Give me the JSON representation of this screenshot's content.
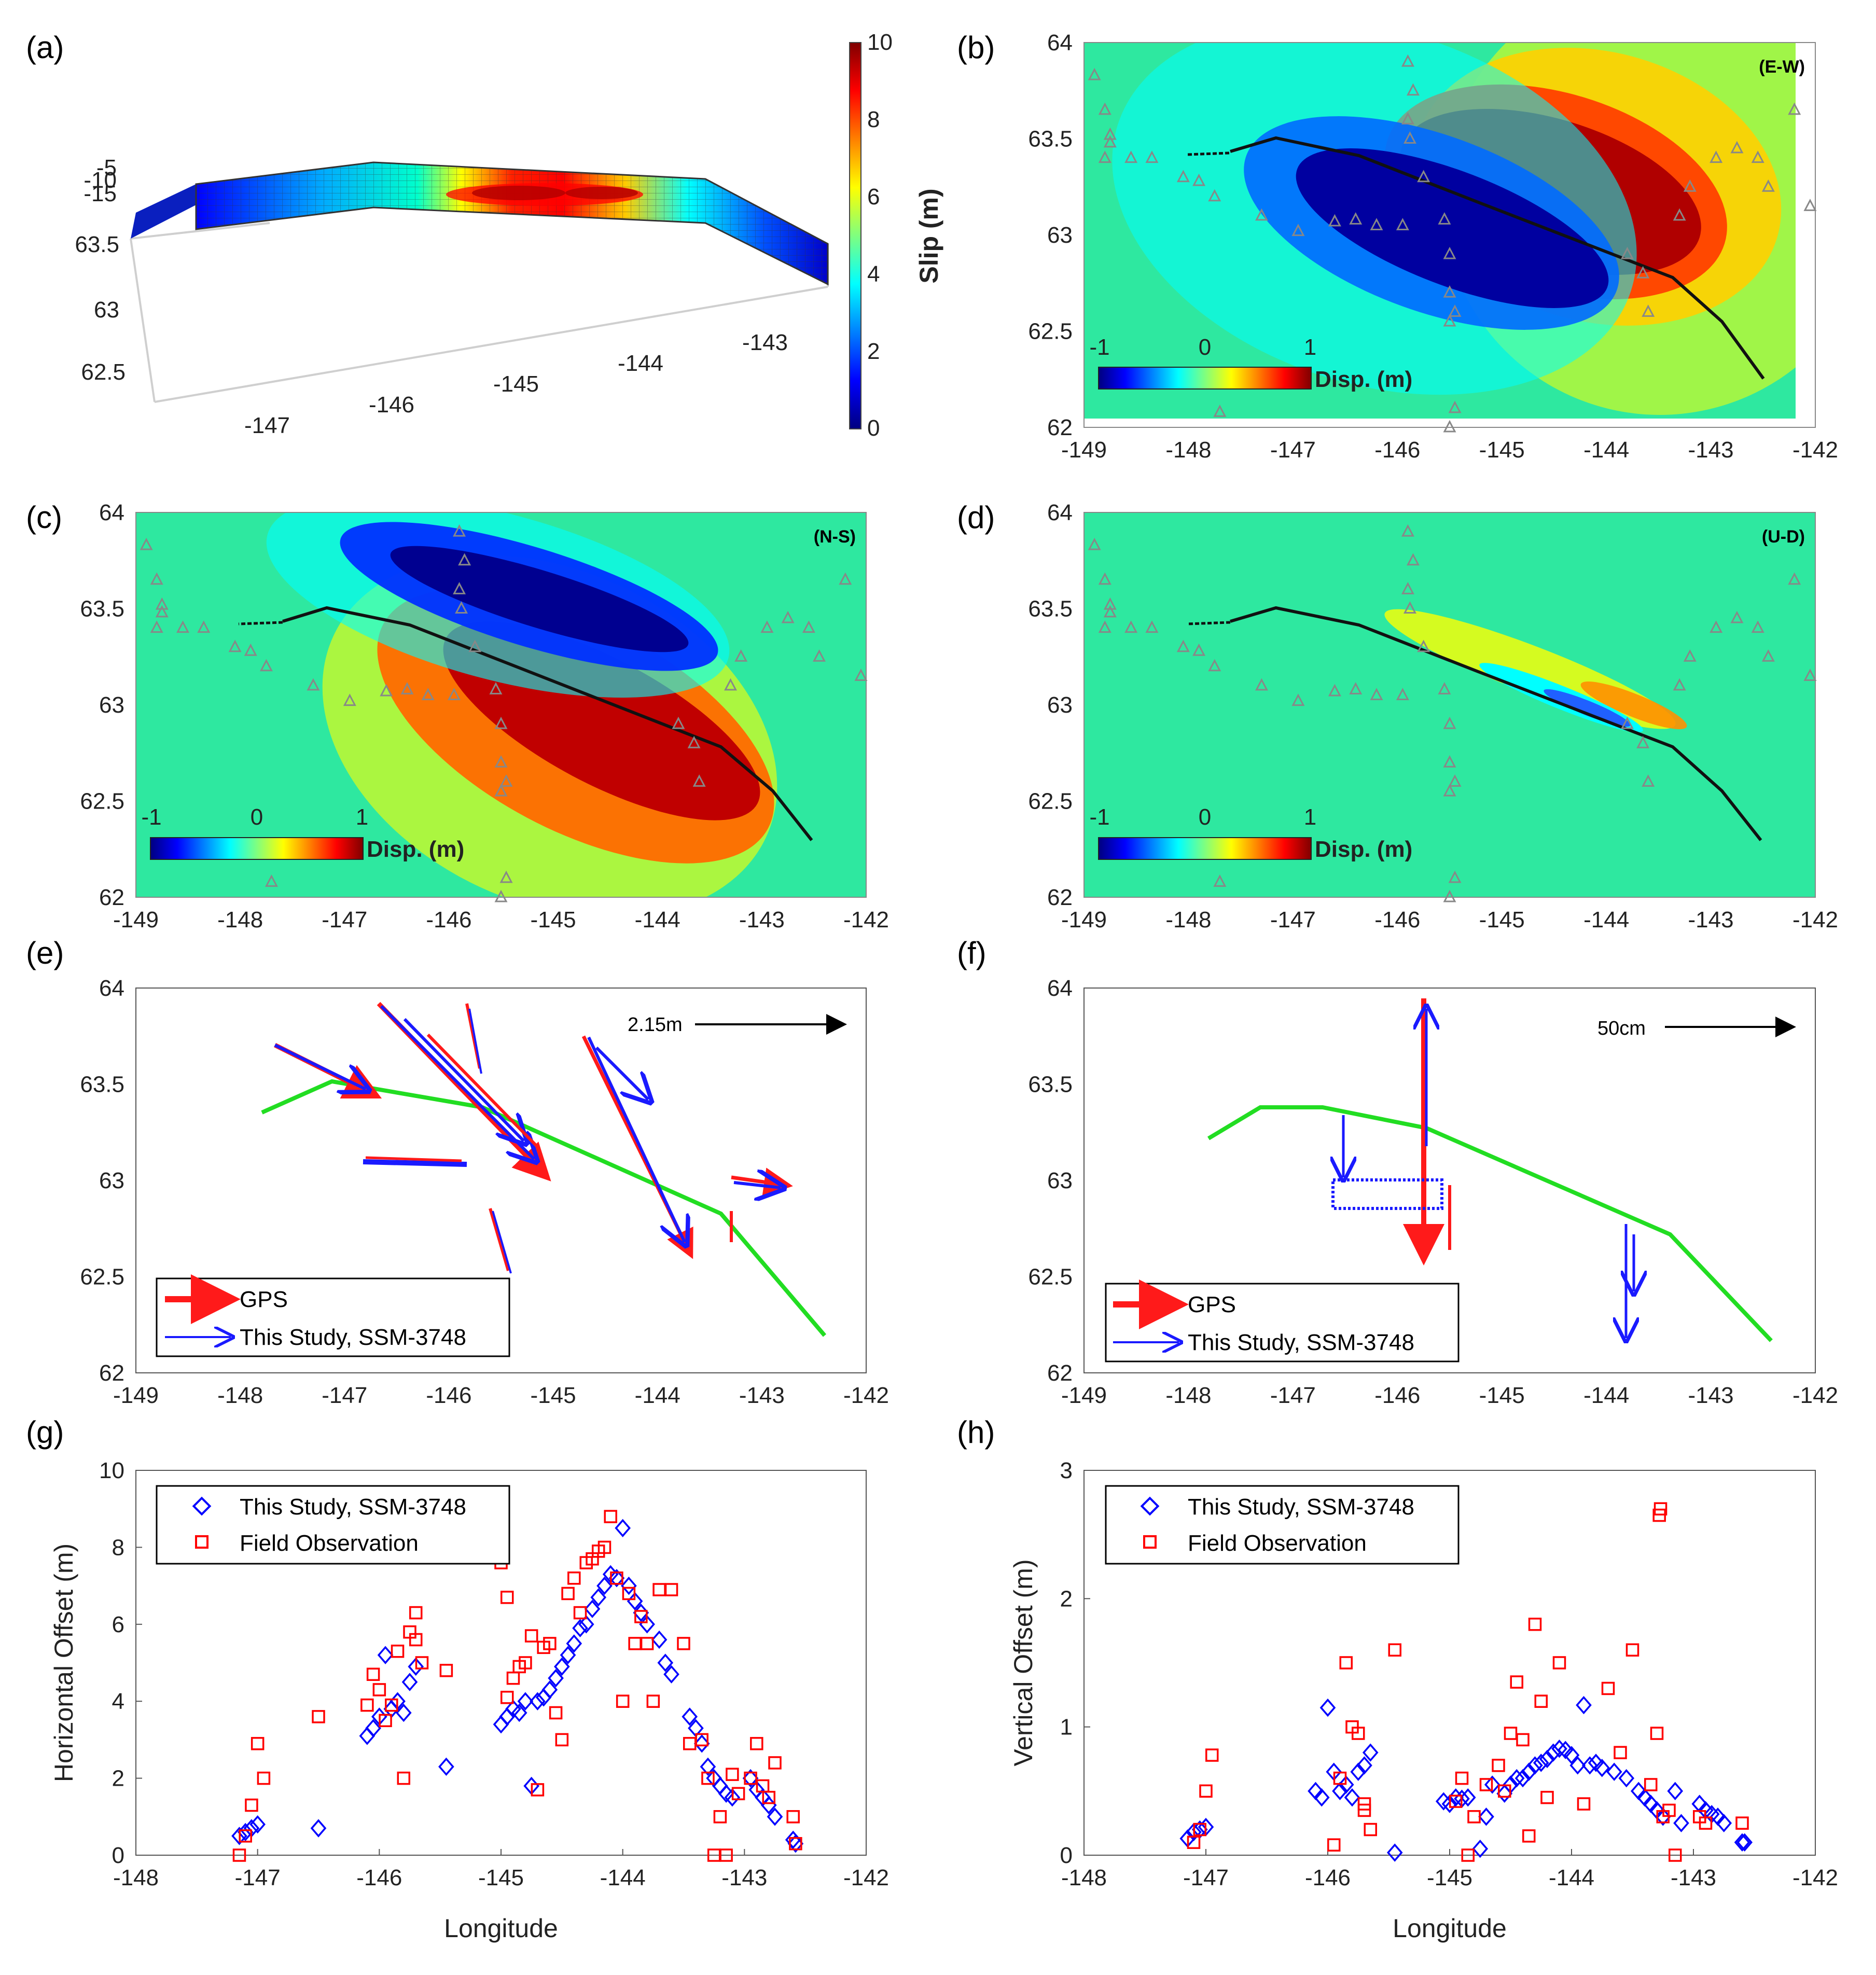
{
  "colors": {
    "jet": [
      "#00007f",
      "#0000ff",
      "#007fff",
      "#00ffff",
      "#7fff7f",
      "#ffff00",
      "#ff7f00",
      "#ff0000",
      "#7f0000"
    ],
    "field_bg": "#2ee8a0",
    "station": "#888888",
    "fault_trace": "#111111",
    "model_green": "#22dd22",
    "gps_red": "#ff1a1a",
    "model_blue": "#1a1aff",
    "marker_blue": "#0000ff",
    "marker_red": "#ff0000",
    "axis": "#555555"
  },
  "panel_a": {
    "label": "(a)",
    "x_ticks": [
      "-147",
      "-146",
      "-145",
      "-144",
      "-143"
    ],
    "y_ticks": [
      "63.5",
      "63",
      "62.5"
    ],
    "z_ticks": [
      "-5",
      "-10",
      "-15"
    ],
    "colorbar_ticks": [
      "10",
      "8",
      "6",
      "4",
      "2",
      "0"
    ],
    "colorbar_label": "Slip (m)"
  },
  "map_panels": [
    {
      "id": "b",
      "label": "(b)",
      "component": "(E-W)",
      "x_ticks": [
        "-149",
        "-148",
        "-147",
        "-146",
        "-145",
        "-144",
        "-143",
        "-142"
      ],
      "y_ticks": [
        "64",
        "63.5",
        "63",
        "62.5",
        "62"
      ],
      "cbar_ticks": [
        "-1",
        "0",
        "1"
      ],
      "cbar_label": "Disp. (m)"
    },
    {
      "id": "c",
      "label": "(c)",
      "component": "(N-S)",
      "x_ticks": [
        "-149",
        "-148",
        "-147",
        "-146",
        "-145",
        "-144",
        "-143",
        "-142"
      ],
      "y_ticks": [
        "64",
        "63.5",
        "63",
        "62.5",
        "62"
      ],
      "cbar_ticks": [
        "-1",
        "0",
        "1"
      ],
      "cbar_label": "Disp. (m)"
    },
    {
      "id": "d",
      "label": "(d)",
      "component": "(U-D)",
      "x_ticks": [
        "-149",
        "-148",
        "-147",
        "-146",
        "-145",
        "-144",
        "-143",
        "-142"
      ],
      "y_ticks": [
        "64",
        "63.5",
        "63",
        "62.5",
        "62"
      ],
      "cbar_ticks": [
        "-1",
        "0",
        "1"
      ],
      "cbar_label": "Disp. (m)"
    }
  ],
  "vector_panels": [
    {
      "id": "e",
      "label": "(e)",
      "scale_label": "2.15m",
      "x_ticks": [
        "-149",
        "-148",
        "-147",
        "-146",
        "-145",
        "-144",
        "-143",
        "-142"
      ],
      "y_ticks": [
        "64",
        "63.5",
        "63",
        "62.5",
        "62"
      ],
      "legend": [
        "GPS",
        "This Study, SSM-3748"
      ]
    },
    {
      "id": "f",
      "label": "(f)",
      "scale_label": "50cm",
      "x_ticks": [
        "-149",
        "-148",
        "-147",
        "-146",
        "-145",
        "-144",
        "-143",
        "-142"
      ],
      "y_ticks": [
        "64",
        "63.5",
        "63",
        "62.5",
        "62"
      ],
      "legend": [
        "GPS",
        "This Study, SSM-3748"
      ]
    }
  ],
  "chart_data": [
    {
      "panel": "(g)",
      "type": "scatter",
      "xlabel": "Longitude",
      "ylabel": "Horizontal Offset (m)",
      "xlim": [
        -148,
        -142
      ],
      "ylim": [
        0,
        10
      ],
      "x_ticks": [
        "-148",
        "-147",
        "-146",
        "-145",
        "-144",
        "-143",
        "-142"
      ],
      "y_ticks": [
        "0",
        "2",
        "4",
        "6",
        "8",
        "10"
      ],
      "series": [
        {
          "name": "This Study, SSM-3748",
          "marker": "diamond",
          "x": [
            -147.15,
            -147.1,
            -147.05,
            -147.0,
            -146.5,
            -146.1,
            -146.05,
            -146.0,
            -145.95,
            -145.9,
            -145.85,
            -145.8,
            -145.75,
            -145.7,
            -145.45,
            -145.0,
            -144.95,
            -144.9,
            -144.85,
            -144.8,
            -144.75,
            -144.7,
            -144.65,
            -144.6,
            -144.55,
            -144.5,
            -144.45,
            -144.4,
            -144.35,
            -144.3,
            -144.25,
            -144.2,
            -144.15,
            -144.1,
            -144.05,
            -144.0,
            -143.95,
            -143.9,
            -143.85,
            -143.8,
            -143.7,
            -143.65,
            -143.6,
            -143.45,
            -143.4,
            -143.35,
            -143.3,
            -143.25,
            -143.2,
            -143.15,
            -143.1,
            -142.95,
            -142.9,
            -142.85,
            -142.8,
            -142.75,
            -142.6,
            -142.58
          ],
          "values": [
            0.5,
            0.6,
            0.7,
            0.8,
            0.7,
            3.1,
            3.3,
            3.6,
            5.2,
            3.8,
            4.0,
            3.7,
            4.5,
            4.9,
            2.3,
            3.4,
            3.6,
            3.8,
            3.7,
            4.0,
            1.8,
            4.0,
            4.1,
            4.3,
            4.6,
            4.9,
            5.2,
            5.5,
            5.9,
            6.0,
            6.4,
            6.7,
            7.0,
            7.3,
            7.2,
            8.5,
            7.0,
            6.6,
            6.3,
            6.0,
            5.6,
            5.0,
            4.7,
            3.6,
            3.3,
            2.9,
            2.3,
            2.0,
            1.8,
            1.6,
            1.5,
            2.0,
            1.7,
            1.5,
            1.3,
            1.0,
            0.4,
            0.3
          ]
        },
        {
          "name": "Field Observation",
          "marker": "square",
          "x": [
            -147.15,
            -147.1,
            -147.05,
            -147.0,
            -146.95,
            -146.5,
            -146.1,
            -146.05,
            -146.0,
            -145.95,
            -145.9,
            -145.85,
            -145.8,
            -145.75,
            -145.7,
            -145.7,
            -145.65,
            -145.45,
            -145.0,
            -144.95,
            -144.95,
            -144.9,
            -144.85,
            -144.8,
            -144.75,
            -144.7,
            -144.65,
            -144.6,
            -144.55,
            -144.5,
            -144.45,
            -144.4,
            -144.35,
            -144.3,
            -144.25,
            -144.2,
            -144.15,
            -144.1,
            -144.05,
            -144.0,
            -143.95,
            -143.9,
            -143.85,
            -143.8,
            -143.75,
            -143.7,
            -143.6,
            -143.5,
            -143.45,
            -143.35,
            -143.3,
            -143.25,
            -143.2,
            -143.15,
            -143.1,
            -143.05,
            -142.95,
            -142.9,
            -142.85,
            -142.8,
            -142.75,
            -142.6,
            -142.58
          ],
          "values": [
            0.0,
            0.5,
            1.3,
            2.9,
            2.0,
            3.6,
            3.9,
            4.7,
            4.3,
            3.5,
            3.9,
            5.3,
            2.0,
            5.8,
            6.3,
            5.6,
            5.0,
            4.8,
            7.6,
            4.1,
            6.7,
            4.6,
            4.9,
            5.0,
            5.7,
            1.7,
            5.4,
            5.5,
            3.7,
            3.0,
            6.8,
            7.2,
            6.3,
            7.6,
            7.7,
            7.9,
            8.0,
            8.8,
            7.2,
            4.0,
            6.8,
            5.5,
            6.2,
            5.5,
            4.0,
            6.9,
            6.9,
            5.5,
            2.9,
            3.0,
            2.0,
            0.0,
            1.0,
            0.0,
            2.1,
            1.6,
            2.0,
            2.9,
            1.8,
            1.5,
            2.4,
            1.0,
            0.3
          ]
        }
      ]
    },
    {
      "panel": "(h)",
      "type": "scatter",
      "xlabel": "Longitude",
      "ylabel": "Vertical Offset (m)",
      "xlim": [
        -148,
        -142
      ],
      "ylim": [
        0,
        3
      ],
      "x_ticks": [
        "-148",
        "-147",
        "-146",
        "-145",
        "-144",
        "-143",
        "-142"
      ],
      "y_ticks": [
        "0",
        "1",
        "2",
        "3"
      ],
      "series": [
        {
          "name": "This Study, SSM-3748",
          "marker": "diamond",
          "x": [
            -147.15,
            -147.1,
            -147.05,
            -147.0,
            -146.1,
            -146.05,
            -146.0,
            -145.95,
            -145.9,
            -145.85,
            -145.8,
            -145.75,
            -145.7,
            -145.65,
            -145.45,
            -145.05,
            -145.0,
            -144.95,
            -144.9,
            -144.85,
            -144.75,
            -144.7,
            -144.65,
            -144.55,
            -144.5,
            -144.45,
            -144.4,
            -144.35,
            -144.3,
            -144.25,
            -144.2,
            -144.15,
            -144.1,
            -144.05,
            -144.0,
            -143.95,
            -143.9,
            -143.85,
            -143.8,
            -143.75,
            -143.65,
            -143.55,
            -143.45,
            -143.4,
            -143.35,
            -143.3,
            -143.25,
            -143.15,
            -143.1,
            -142.95,
            -142.9,
            -142.85,
            -142.8,
            -142.75,
            -142.6,
            -142.58
          ],
          "values": [
            0.13,
            0.18,
            0.2,
            0.22,
            0.5,
            0.45,
            1.15,
            0.65,
            0.5,
            0.55,
            0.45,
            0.65,
            0.7,
            0.8,
            0.02,
            0.42,
            0.4,
            0.45,
            0.44,
            0.45,
            0.05,
            0.3,
            0.55,
            0.48,
            0.55,
            0.6,
            0.6,
            0.65,
            0.7,
            0.72,
            0.75,
            0.8,
            0.83,
            0.82,
            0.78,
            0.7,
            1.17,
            0.7,
            0.72,
            0.68,
            0.65,
            0.6,
            0.5,
            0.45,
            0.4,
            0.35,
            0.3,
            0.5,
            0.25,
            0.4,
            0.35,
            0.32,
            0.3,
            0.25,
            0.1,
            0.1
          ]
        },
        {
          "name": "Field Observation",
          "marker": "square",
          "x": [
            -147.1,
            -147.05,
            -147.0,
            -146.95,
            -145.95,
            -145.9,
            -145.85,
            -145.8,
            -145.75,
            -145.7,
            -145.7,
            -145.65,
            -145.45,
            -144.95,
            -144.9,
            -144.85,
            -144.8,
            -144.7,
            -144.6,
            -144.55,
            -144.5,
            -144.45,
            -144.4,
            -144.35,
            -144.3,
            -144.25,
            -144.2,
            -144.1,
            -143.9,
            -143.7,
            -143.6,
            -143.5,
            -143.35,
            -143.3,
            -143.28,
            -143.27,
            -143.25,
            -143.2,
            -143.15,
            -142.95,
            -142.9,
            -142.6
          ],
          "values": [
            0.1,
            0.2,
            0.5,
            0.78,
            0.08,
            0.6,
            1.5,
            1.0,
            0.95,
            0.4,
            0.35,
            0.2,
            1.6,
            0.42,
            0.6,
            0.0,
            0.3,
            0.55,
            0.7,
            0.5,
            0.95,
            1.35,
            0.9,
            0.15,
            1.8,
            1.2,
            0.45,
            1.5,
            0.4,
            1.3,
            0.8,
            1.6,
            0.55,
            0.95,
            2.65,
            2.7,
            0.3,
            0.35,
            0.0,
            0.3,
            0.25,
            0.25
          ]
        }
      ]
    }
  ]
}
